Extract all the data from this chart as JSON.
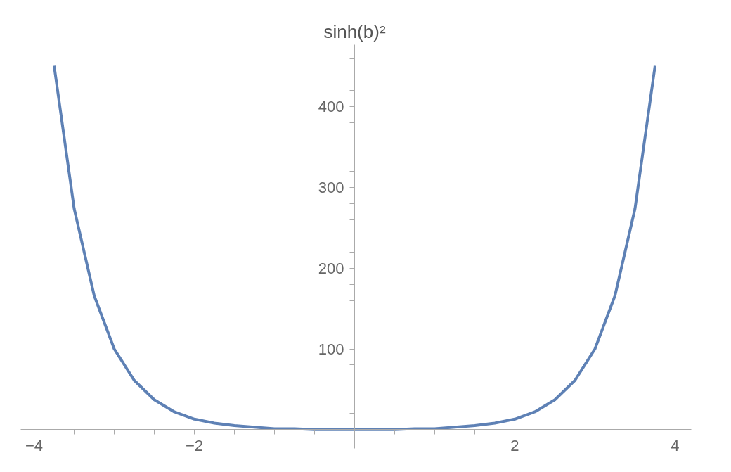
{
  "chart_data": {
    "type": "line",
    "ylabel": "sinh(b)²",
    "x": [
      -3.75,
      -3.5,
      -3.25,
      -3,
      -2.75,
      -2.5,
      -2.25,
      -2,
      -1.75,
      -1.5,
      -1.25,
      -1,
      -0.75,
      -0.5,
      -0.25,
      0,
      0.25,
      0.5,
      0.75,
      1,
      1.25,
      1.5,
      1.75,
      2,
      2.25,
      2.5,
      2.75,
      3,
      3.25,
      3.5,
      3.75
    ],
    "series": [
      {
        "color": "#5e81b5",
        "values": [
          451,
          274,
          166,
          100,
          61,
          37,
          22,
          13,
          8,
          5,
          3,
          1,
          1,
          0,
          0,
          0,
          0,
          0,
          1,
          1,
          3,
          5,
          8,
          13,
          22,
          37,
          61,
          100,
          166,
          274,
          451
        ]
      }
    ],
    "xlim": [
      -4.17,
      4.2
    ],
    "ylim": [
      -23,
      477
    ],
    "xticks": [
      -4,
      {
        "value": -3.5,
        "label": null
      },
      {
        "value": -3,
        "label": null
      },
      {
        "value": -2.5,
        "label": null
      },
      -2,
      {
        "value": -1.5,
        "label": null
      },
      {
        "value": -1,
        "label": null
      },
      {
        "value": -0.5,
        "label": null
      },
      {
        "value": 0.5,
        "label": null
      },
      {
        "value": 1,
        "label": null
      },
      {
        "value": 1.5,
        "label": null
      },
      2,
      {
        "value": 2.5,
        "label": null
      },
      {
        "value": 3,
        "label": null
      },
      {
        "value": 3.5,
        "label": null
      },
      4
    ],
    "yticks": [
      {
        "value": 20,
        "label": null
      },
      {
        "value": 40,
        "label": null
      },
      {
        "value": 60,
        "label": null
      },
      {
        "value": 80,
        "label": null
      },
      100,
      {
        "value": 120,
        "label": null
      },
      {
        "value": 140,
        "label": null
      },
      {
        "value": 160,
        "label": null
      },
      {
        "value": 180,
        "label": null
      },
      200,
      {
        "value": 220,
        "label": null
      },
      {
        "value": 240,
        "label": null
      },
      {
        "value": 260,
        "label": null
      },
      {
        "value": 280,
        "label": null
      },
      300,
      {
        "value": 320,
        "label": null
      },
      {
        "value": 340,
        "label": null
      },
      {
        "value": 360,
        "label": null
      },
      {
        "value": 380,
        "label": null
      },
      400,
      {
        "value": 420,
        "label": null
      },
      {
        "value": 440,
        "label": null
      },
      {
        "value": 460,
        "label": null
      }
    ],
    "grid": false,
    "marker": "none",
    "line_style": "solid"
  }
}
